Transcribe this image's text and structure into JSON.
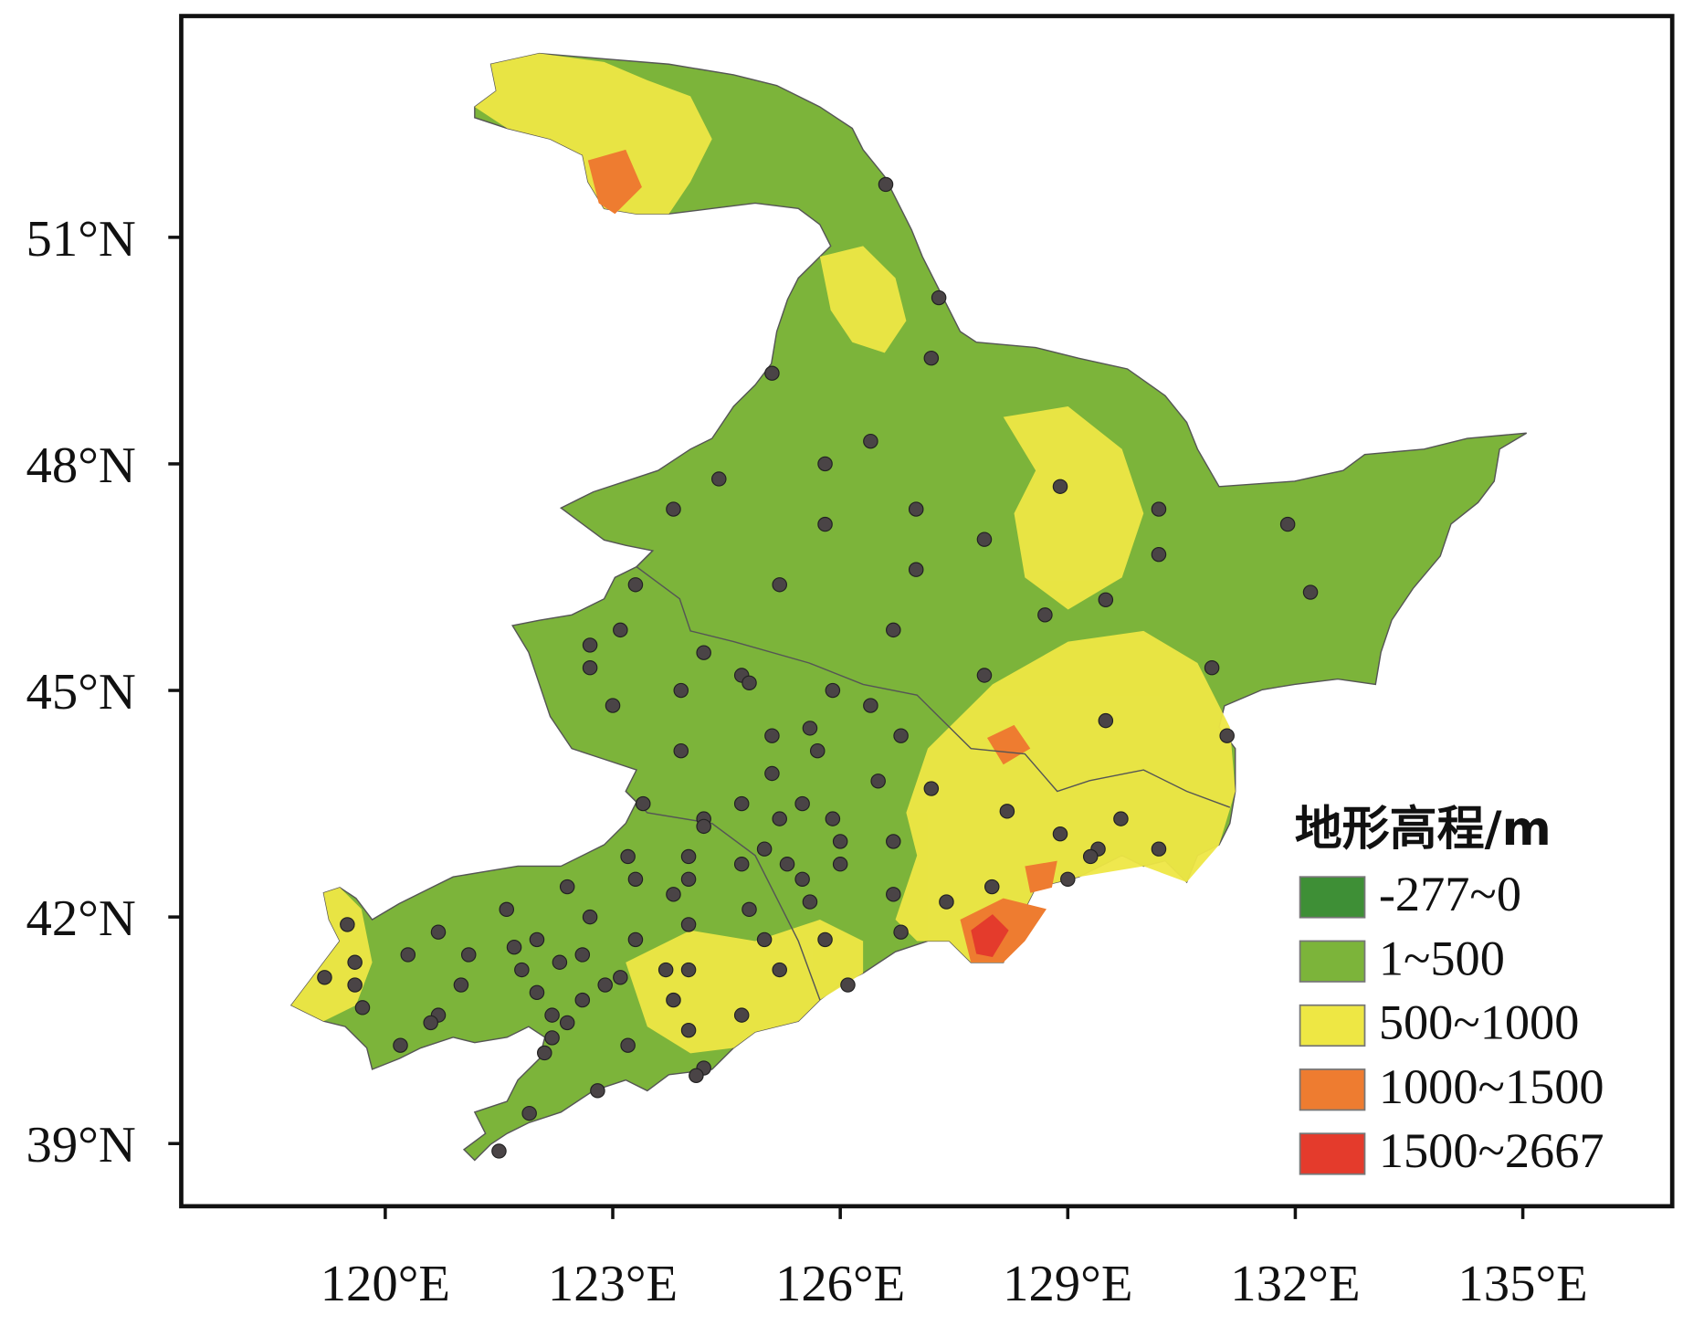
{
  "chart_data": {
    "type": "scatter",
    "x": [
      126.6,
      127.3,
      127.2,
      125.1,
      126.4,
      125.8,
      124.4,
      123.8,
      125.8,
      127.0,
      128.9,
      127.9,
      130.2,
      130.2,
      131.9,
      132.2,
      127.0,
      125.2,
      123.3,
      128.7,
      129.5,
      126.7,
      123.1,
      122.7,
      124.2,
      122.7,
      124.7,
      124.8,
      130.9,
      127.9,
      123.9,
      125.9,
      126.4,
      123.0,
      129.5,
      125.6,
      125.1,
      126.8,
      131.1,
      123.9,
      125.7,
      125.1,
      126.5,
      127.2,
      123.4,
      124.7,
      125.5,
      128.2,
      124.2,
      125.2,
      125.9,
      129.7,
      124.2,
      126.0,
      126.7,
      128.9,
      123.2,
      124.0,
      125.0,
      124.7,
      125.3,
      126.0,
      130.2,
      129.4,
      129.3,
      122.4,
      123.3,
      124.0,
      125.5,
      123.8,
      126.7,
      128.0,
      129.0,
      125.6,
      127.4,
      121.6,
      124.8,
      122.7,
      119.5,
      124.0,
      120.7,
      126.8,
      122.0,
      123.3,
      125.0,
      125.8,
      121.7,
      120.3,
      121.1,
      122.6,
      119.6,
      122.3,
      121.8,
      123.7,
      124.0,
      125.2,
      119.2,
      123.1,
      122.9,
      121.0,
      119.6,
      126.1,
      122.0,
      122.6,
      123.8,
      119.7,
      122.2,
      120.7,
      124.7,
      120.6,
      122.4,
      124.0,
      122.2,
      123.2,
      120.2,
      122.1,
      124.2,
      124.1,
      122.8,
      121.9,
      121.5
    ],
    "values": [
      51.7,
      50.2,
      49.4,
      49.2,
      48.3,
      48.0,
      47.8,
      47.4,
      47.2,
      47.4,
      47.7,
      47.0,
      47.4,
      46.8,
      47.2,
      46.3,
      46.6,
      46.4,
      46.4,
      46.0,
      46.2,
      45.8,
      45.8,
      45.6,
      45.5,
      45.3,
      45.2,
      45.1,
      45.3,
      45.2,
      45.0,
      45.0,
      44.8,
      44.8,
      44.6,
      44.5,
      44.4,
      44.4,
      44.4,
      44.2,
      44.2,
      43.9,
      43.8,
      43.7,
      43.5,
      43.5,
      43.5,
      43.4,
      43.3,
      43.3,
      43.3,
      43.3,
      43.2,
      43.0,
      43.0,
      43.1,
      42.8,
      42.8,
      42.9,
      42.7,
      42.7,
      42.7,
      42.9,
      42.9,
      42.8,
      42.4,
      42.5,
      42.5,
      42.5,
      42.3,
      42.3,
      42.4,
      42.5,
      42.2,
      42.2,
      42.1,
      42.1,
      42.0,
      41.9,
      41.9,
      41.8,
      41.8,
      41.7,
      41.7,
      41.7,
      41.7,
      41.6,
      41.5,
      41.5,
      41.5,
      41.4,
      41.4,
      41.3,
      41.3,
      41.3,
      41.3,
      41.2,
      41.2,
      41.1,
      41.1,
      41.1,
      41.1,
      41.0,
      40.9,
      40.9,
      40.8,
      40.7,
      40.7,
      40.7,
      40.6,
      40.6,
      40.5,
      40.4,
      40.3,
      40.3,
      40.2,
      40.0,
      39.9,
      39.7,
      39.4,
      38.9
    ],
    "color": "#4a4446",
    "xlim": [
      117.31,
      136.97
    ],
    "ylim": [
      38.17,
      53.93
    ],
    "xticks": [
      {
        "value": 120,
        "label": "120°E"
      },
      {
        "value": 123,
        "label": "123°E"
      },
      {
        "value": 126,
        "label": "126°E"
      },
      {
        "value": 129,
        "label": "129°E"
      },
      {
        "value": 132,
        "label": "132°E"
      },
      {
        "value": 135,
        "label": "135°E"
      }
    ],
    "yticks": [
      {
        "value": 39,
        "label": "39°N"
      },
      {
        "value": 42,
        "label": "42°N"
      },
      {
        "value": 45,
        "label": "45°N"
      },
      {
        "value": 48,
        "label": "48°N"
      },
      {
        "value": 51,
        "label": "51°N"
      }
    ],
    "legend": {
      "title": "地形高程/m",
      "items": [
        {
          "label": "-277~0",
          "color": "#3e8f36"
        },
        {
          "label": "1~500",
          "color": "#7cb43a"
        },
        {
          "label": "500~1000",
          "color": "#eee744"
        },
        {
          "label": "1000~1500",
          "color": "#ee7c30"
        },
        {
          "label": "1500~2667",
          "color": "#e43b2c"
        }
      ]
    }
  }
}
